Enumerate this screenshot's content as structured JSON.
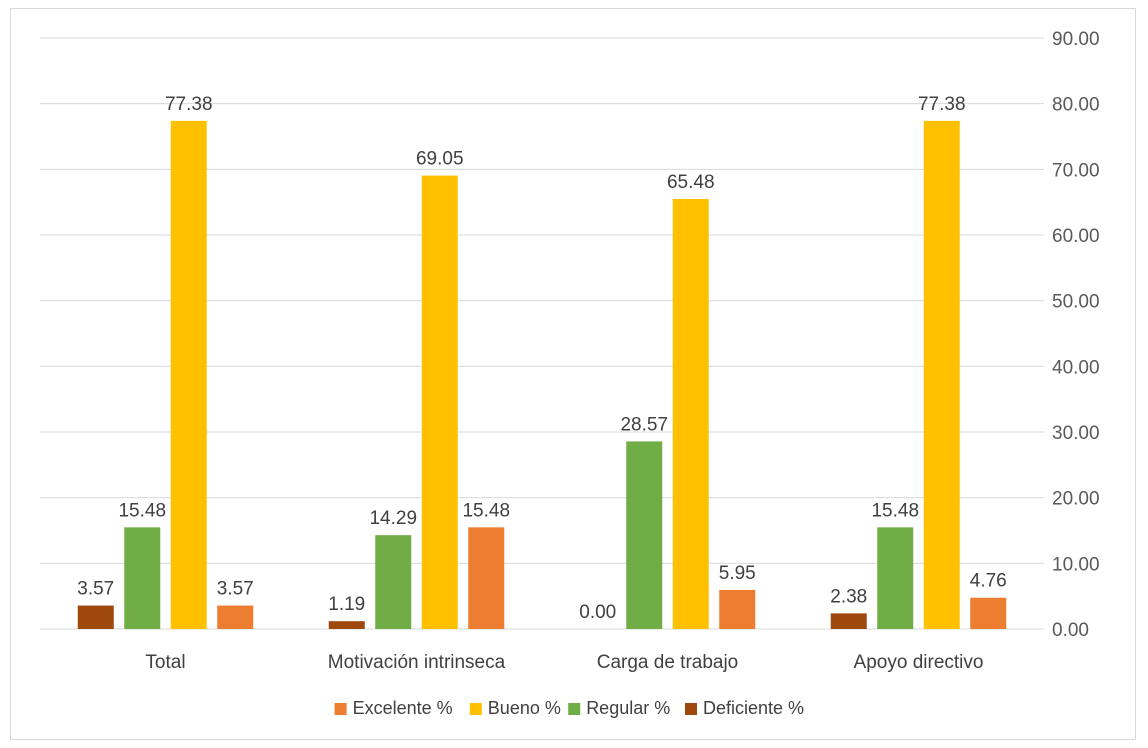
{
  "chart_data": {
    "type": "bar",
    "title": "",
    "xlabel": "",
    "ylabel": "",
    "categories": [
      "Total",
      "Motivación intrinseca",
      "Carga de trabajo",
      "Apoyo directivo"
    ],
    "series": [
      {
        "name": "Deficiente %",
        "color": "#9e480e",
        "values": [
          3.57,
          1.19,
          0.0,
          2.38
        ],
        "labels": [
          "3.57",
          "1.19",
          "0.00",
          "2.38"
        ]
      },
      {
        "name": "Regular %",
        "color": "#70ad47",
        "values": [
          15.48,
          14.29,
          28.57,
          15.48
        ],
        "labels": [
          "15.48",
          "14.29",
          "28.57",
          "15.48"
        ]
      },
      {
        "name": "Bueno %",
        "color": "#ffc000",
        "values": [
          77.38,
          69.05,
          65.48,
          77.38
        ],
        "labels": [
          "77.38",
          "69.05",
          "65.48",
          "77.38"
        ]
      },
      {
        "name": "Excelente %",
        "color": "#ed7d31",
        "values": [
          3.57,
          15.48,
          5.95,
          4.76
        ],
        "labels": [
          "3.57",
          "15.48",
          "5.95",
          "4.76"
        ]
      }
    ],
    "legend_order": [
      "Excelente %",
      "Bueno %",
      "Regular %",
      "Deficiente %"
    ],
    "ylim": [
      0,
      90
    ],
    "yticks": [
      "0.00",
      "10.00",
      "20.00",
      "30.00",
      "40.00",
      "50.00",
      "60.00",
      "70.00",
      "80.00",
      "90.00"
    ],
    "y_axis_position": "right",
    "grid": true,
    "legend_position": "bottom"
  }
}
